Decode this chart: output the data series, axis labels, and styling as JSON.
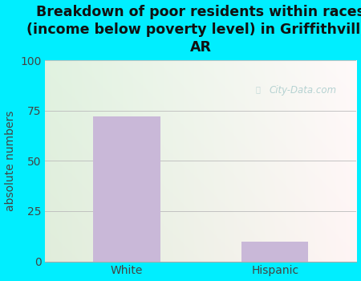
{
  "categories": [
    "White",
    "Hispanic"
  ],
  "values": [
    72,
    10
  ],
  "bar_color": "#c9b8d8",
  "title": "Breakdown of poor residents within races\n(income below poverty level) in Griffithville,\nAR",
  "ylabel": "absolute numbers",
  "ylim": [
    0,
    100
  ],
  "yticks": [
    0,
    25,
    50,
    75,
    100
  ],
  "bg_outer": "#00eeff",
  "bg_plot_left": "#d4ecd4",
  "bg_plot_right": "#f0faf5",
  "title_fontsize": 12.5,
  "axis_label_fontsize": 10,
  "tick_fontsize": 10,
  "watermark": "City-Data.com",
  "bar_width": 0.45,
  "xlim": [
    -0.55,
    1.55
  ]
}
